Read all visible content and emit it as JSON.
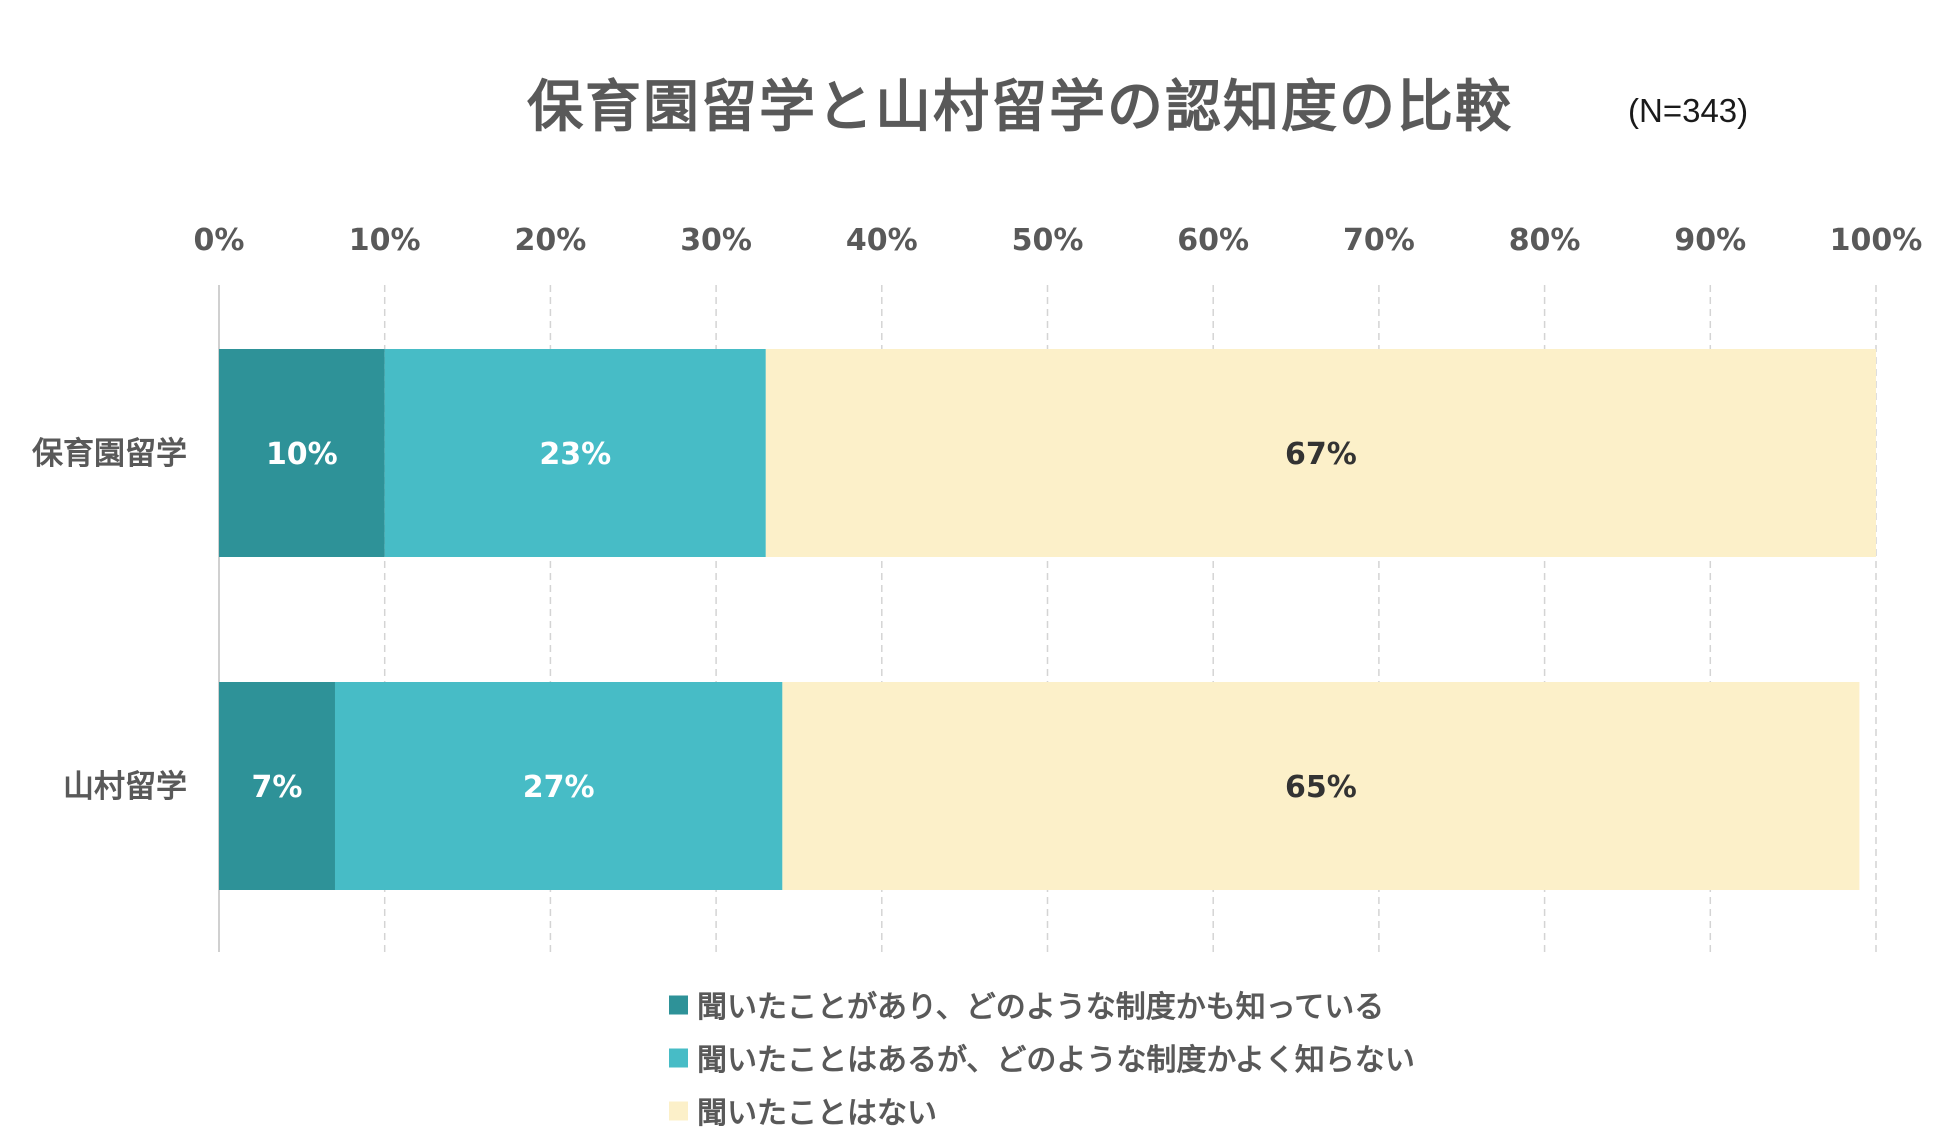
{
  "chart_data": {
    "type": "bar",
    "orientation": "horizontal",
    "stacked": true,
    "title": "保育園留学と山村留学の認知度の比較",
    "subtitle": "(N=343)",
    "categories": [
      "保育園留学",
      "山村留学"
    ],
    "series": [
      {
        "name": "聞いたことがあり、どのような制度かも知っている",
        "color": "#2e9298",
        "values": [
          10,
          7
        ],
        "labels": [
          "10%",
          "7%"
        ],
        "label_color": "#ffffff"
      },
      {
        "name": "聞いたことはあるが、どのような制度かよく知らない",
        "color": "#47bcc6",
        "values": [
          23,
          27
        ],
        "labels": [
          "23%",
          "27%"
        ],
        "label_color": "#ffffff"
      },
      {
        "name": "聞いたことはない",
        "color": "#fcf0c9",
        "values": [
          67,
          65
        ],
        "labels": [
          "67%",
          "65%"
        ],
        "label_color": "#333333"
      }
    ],
    "xlim": [
      0,
      100
    ],
    "x_ticks": [
      "0%",
      "10%",
      "20%",
      "30%",
      "40%",
      "50%",
      "60%",
      "70%",
      "80%",
      "90%",
      "100%"
    ],
    "x_axis_position": "top",
    "grid": true,
    "legend_position": "bottom"
  }
}
